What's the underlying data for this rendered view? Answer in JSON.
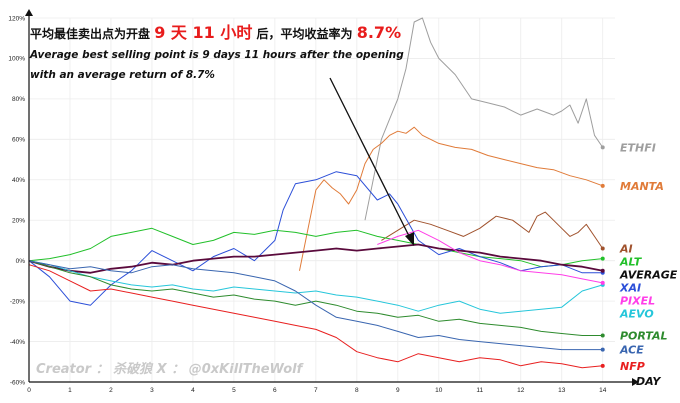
{
  "annotation": {
    "cn_prefix": "平均最佳卖出点为开盘",
    "cn_days": "9 天 11 小时",
    "cn_mid": "后，平均收益率为",
    "cn_return": "8.7%",
    "en_line1": "Average best selling point is 9 days 11 hours after the opening",
    "en_line2": "with an average return of 8.7%"
  },
  "credit": "Creator ： 杀破狼     X ： @0xKillTheWolf",
  "chart_data": {
    "type": "line",
    "title": "",
    "xlabel": "DAY",
    "ylabel": "",
    "xlim": [
      0,
      14.3
    ],
    "ylim": [
      -60,
      120
    ],
    "x_ticks": [
      0,
      1,
      2,
      3,
      4,
      5,
      6,
      7,
      8,
      9,
      10,
      11,
      12,
      13,
      14
    ],
    "y_ticks": [
      -60,
      -40,
      -20,
      0,
      20,
      40,
      60,
      80,
      100,
      120
    ],
    "y_tick_suffix": "%",
    "grid": true,
    "series": [
      {
        "name": "ETHFI",
        "color": "#9e9e9e",
        "x": [
          8.2,
          8.4,
          8.6,
          8.8,
          9.0,
          9.2,
          9.4,
          9.6,
          9.8,
          10.0,
          10.4,
          10.8,
          11.2,
          11.6,
          12.0,
          12.4,
          12.8,
          13.0,
          13.2,
          13.4,
          13.6,
          13.8,
          14.0
        ],
        "y": [
          20,
          40,
          60,
          70,
          80,
          95,
          118,
          120,
          108,
          100,
          92,
          80,
          78,
          76,
          72,
          75,
          72,
          74,
          77,
          68,
          80,
          62,
          56
        ]
      },
      {
        "name": "MANTA",
        "color": "#e07b39",
        "x": [
          6.6,
          6.8,
          7.0,
          7.2,
          7.4,
          7.6,
          7.8,
          8.0,
          8.2,
          8.4,
          8.6,
          8.8,
          9.0,
          9.2,
          9.4,
          9.6,
          10.0,
          10.4,
          10.8,
          11.2,
          11.6,
          12.0,
          12.4,
          12.8,
          13.2,
          13.6,
          14.0
        ],
        "y": [
          -5,
          15,
          35,
          40,
          36,
          33,
          28,
          35,
          48,
          55,
          58,
          62,
          64,
          63,
          66,
          62,
          58,
          56,
          55,
          52,
          50,
          48,
          46,
          45,
          42,
          40,
          37
        ]
      },
      {
        "name": "AI",
        "color": "#a0522d",
        "x": [
          8.6,
          9.0,
          9.4,
          9.8,
          10.2,
          10.6,
          11.0,
          11.4,
          11.8,
          12.2,
          12.4,
          12.6,
          12.8,
          13.0,
          13.2,
          13.4,
          13.6,
          13.8,
          14.0
        ],
        "y": [
          10,
          15,
          20,
          18,
          15,
          12,
          16,
          22,
          20,
          14,
          22,
          24,
          20,
          16,
          12,
          14,
          18,
          12,
          6
        ]
      },
      {
        "name": "ALT",
        "color": "#22c02a",
        "x": [
          0,
          0.5,
          1,
          1.5,
          2,
          2.5,
          3,
          3.5,
          4,
          4.5,
          5,
          5.5,
          6,
          6.5,
          7,
          7.5,
          8,
          8.5,
          9,
          9.5,
          10,
          10.5,
          11,
          11.5,
          12,
          12.5,
          13,
          13.5,
          14
        ],
        "y": [
          0,
          1,
          3,
          6,
          12,
          14,
          16,
          12,
          8,
          10,
          14,
          13,
          15,
          14,
          12,
          14,
          15,
          12,
          10,
          8,
          6,
          4,
          2,
          1,
          0,
          -3,
          -2,
          0,
          1
        ]
      },
      {
        "name": "XAI",
        "color": "#2c4fd8",
        "x": [
          0,
          0.5,
          1,
          1.5,
          2,
          2.5,
          3,
          3.5,
          4,
          4.5,
          5,
          5.5,
          6,
          6.2,
          6.5,
          7,
          7.5,
          8,
          8.5,
          8.8,
          9,
          9.5,
          10,
          10.5,
          11,
          11.5,
          12,
          12.5,
          13,
          13.5,
          14
        ],
        "y": [
          0,
          -8,
          -20,
          -22,
          -12,
          -5,
          5,
          0,
          -5,
          2,
          6,
          0,
          10,
          25,
          38,
          40,
          44,
          42,
          30,
          33,
          28,
          10,
          3,
          6,
          2,
          -1,
          -5,
          -3,
          -2,
          -6,
          -6
        ]
      },
      {
        "name": "AVERAGE",
        "color": "#5a0a3c",
        "x": [
          0,
          0.5,
          1,
          1.5,
          2,
          2.5,
          3,
          3.5,
          4,
          4.5,
          5,
          5.5,
          6,
          6.5,
          7,
          7.5,
          8,
          8.5,
          9,
          9.5,
          10,
          10.5,
          11,
          11.5,
          12,
          12.5,
          13,
          13.5,
          14
        ],
        "y": [
          0,
          -3,
          -5,
          -6,
          -4,
          -3,
          -1,
          -2,
          0,
          1,
          2,
          2,
          3,
          4,
          5,
          6,
          5,
          6,
          7,
          8,
          6,
          5,
          4,
          2,
          1,
          0,
          -2,
          -3,
          -5
        ]
      },
      {
        "name": "AEVO",
        "color": "#26c6da",
        "x": [
          0,
          0.5,
          1,
          1.5,
          2,
          2.5,
          3,
          3.5,
          4,
          4.5,
          5,
          5.5,
          6,
          6.5,
          7,
          7.5,
          8,
          8.5,
          9,
          9.5,
          10,
          10.5,
          11,
          11.5,
          12,
          12.5,
          13,
          13.5,
          14
        ],
        "y": [
          0,
          -2,
          -5,
          -8,
          -10,
          -12,
          -13,
          -12,
          -14,
          -15,
          -13,
          -14,
          -15,
          -16,
          -15,
          -17,
          -18,
          -20,
          -22,
          -25,
          -22,
          -20,
          -24,
          -26,
          -25,
          -24,
          -23,
          -15,
          -12
        ]
      },
      {
        "name": "PIXEL",
        "color": "#ff3ee8",
        "x": [
          8.5,
          9,
          9.5,
          10,
          10.5,
          11,
          11.5,
          12,
          12.5,
          13,
          13.5,
          14
        ],
        "y": [
          8,
          12,
          15,
          10,
          4,
          0,
          -2,
          -5,
          -6,
          -7,
          -9,
          -11
        ]
      },
      {
        "name": "PORTAL",
        "color": "#2e8b2e",
        "x": [
          0,
          0.5,
          1,
          1.5,
          2,
          2.5,
          3,
          3.5,
          4,
          4.5,
          5,
          5.5,
          6,
          6.5,
          7,
          7.5,
          8,
          8.5,
          9,
          9.5,
          10,
          10.5,
          11,
          11.5,
          12,
          12.5,
          13,
          13.5,
          14
        ],
        "y": [
          0,
          -3,
          -6,
          -8,
          -12,
          -14,
          -15,
          -14,
          -16,
          -18,
          -17,
          -19,
          -20,
          -22,
          -20,
          -22,
          -25,
          -26,
          -28,
          -27,
          -30,
          -29,
          -31,
          -32,
          -33,
          -35,
          -36,
          -37,
          -37
        ]
      },
      {
        "name": "ACE",
        "color": "#3a66b0",
        "x": [
          0,
          0.5,
          1,
          1.5,
          2,
          2.5,
          3,
          3.5,
          4,
          4.5,
          5,
          5.5,
          6,
          6.5,
          7,
          7.5,
          8,
          8.5,
          9,
          9.5,
          10,
          10.5,
          11,
          11.5,
          12,
          12.5,
          13,
          13.5,
          14
        ],
        "y": [
          0,
          -2,
          -4,
          -3,
          -5,
          -6,
          -3,
          -2,
          -4,
          -5,
          -6,
          -8,
          -10,
          -15,
          -22,
          -28,
          -30,
          -32,
          -35,
          -38,
          -37,
          -39,
          -40,
          -41,
          -42,
          -43,
          -44,
          -44,
          -44
        ]
      },
      {
        "name": "NFP",
        "color": "#e82020",
        "x": [
          0,
          0.5,
          1,
          1.5,
          2,
          2.5,
          3,
          3.5,
          4,
          4.5,
          5,
          5.5,
          6,
          6.5,
          7,
          7.5,
          8,
          8.5,
          9,
          9.5,
          10,
          10.5,
          11,
          11.5,
          12,
          12.5,
          13,
          13.5,
          14
        ],
        "y": [
          -2,
          -5,
          -10,
          -15,
          -14,
          -16,
          -18,
          -20,
          -22,
          -24,
          -26,
          -28,
          -30,
          -32,
          -34,
          -38,
          -45,
          -48,
          -50,
          -46,
          -48,
          -50,
          -48,
          -49,
          -52,
          -50,
          -51,
          -53,
          -52
        ]
      }
    ]
  }
}
